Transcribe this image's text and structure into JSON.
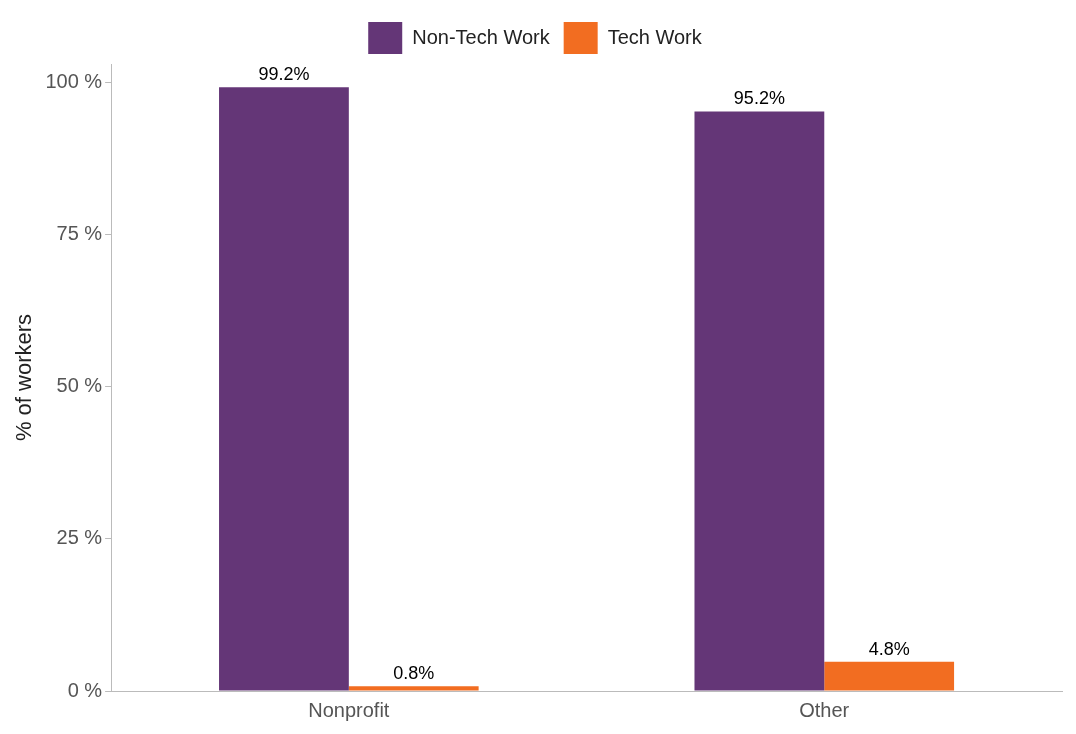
{
  "chart_data": {
    "type": "bar",
    "ylabel": "% of workers",
    "categories": [
      "Nonprofit",
      "Other"
    ],
    "series": [
      {
        "name": "Non-Tech Work",
        "color": "#643677",
        "values": [
          99.2,
          95.2
        ],
        "value_labels": [
          "99.2%",
          "95.2%"
        ]
      },
      {
        "name": "Tech Work",
        "color": "#f26d21",
        "values": [
          0.8,
          4.8
        ],
        "value_labels": [
          "0.8%",
          "4.8%"
        ]
      }
    ],
    "ylim": [
      0,
      103
    ],
    "yticks": [
      {
        "value": 0,
        "label": "0 %"
      },
      {
        "value": 25,
        "label": "25 %"
      },
      {
        "value": 50,
        "label": "50 %"
      },
      {
        "value": 75,
        "label": "75 %"
      },
      {
        "value": 100,
        "label": "100 %"
      }
    ],
    "grid": false,
    "legend": "top"
  }
}
